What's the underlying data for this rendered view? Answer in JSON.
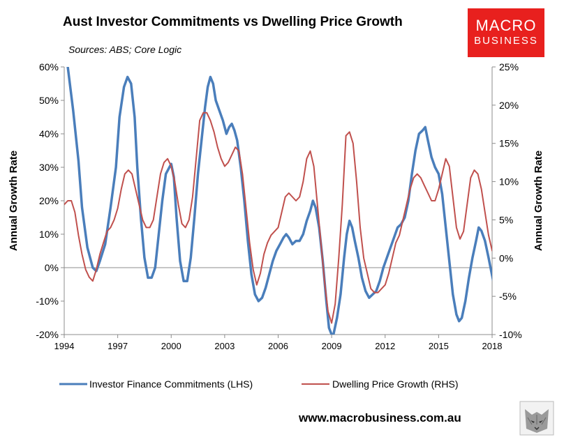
{
  "colors": {
    "investor": "#4a7ebb",
    "dwelling": "#c0504d",
    "logo_bg": "#e8201e",
    "axis": "#8c8c8c",
    "text": "#000000"
  },
  "logo": {
    "line1": "MACRO",
    "line2": "BUSINESS"
  },
  "footer": {
    "url": "www.macrobusiness.com.au"
  },
  "chart_data": {
    "type": "line",
    "title": "Aust Investor Commitments vs Dwelling Price Growth",
    "subtitle": "Sources: ABS; Core Logic",
    "ylabel_left": "Annual Growth Rate",
    "ylabel_right": "Annual Growth Rate",
    "x_range": [
      1994,
      2018
    ],
    "x_ticks": [
      1994,
      1997,
      2000,
      2003,
      2006,
      2009,
      2012,
      2015,
      2018
    ],
    "x_tick_labels": [
      "1994",
      "1997",
      "2000",
      "2003",
      "2006",
      "2009",
      "2012",
      "2015",
      "2018"
    ],
    "y_left_range": [
      -20,
      60
    ],
    "y_left_ticks": [
      -20,
      -10,
      0,
      10,
      20,
      30,
      40,
      50,
      60
    ],
    "y_left_tick_labels": [
      "-20%",
      "-10%",
      "0%",
      "10%",
      "20%",
      "30%",
      "40%",
      "50%",
      "60%"
    ],
    "y_right_range": [
      -10,
      25
    ],
    "y_right_ticks": [
      -10,
      -5,
      0,
      5,
      10,
      15,
      20,
      25
    ],
    "y_right_tick_labels": [
      "-10%",
      "-5%",
      "0%",
      "5%",
      "10%",
      "15%",
      "20%",
      "25%"
    ],
    "series": [
      {
        "name": "Investor Finance Commitments (LHS)",
        "axis": "left",
        "color": "#4a7ebb",
        "points": [
          [
            1994.2,
            60
          ],
          [
            1994.5,
            47
          ],
          [
            1994.8,
            32
          ],
          [
            1995.0,
            18
          ],
          [
            1995.3,
            6
          ],
          [
            1995.6,
            0
          ],
          [
            1995.8,
            -1
          ],
          [
            1996.0,
            2
          ],
          [
            1996.3,
            7
          ],
          [
            1996.6,
            18
          ],
          [
            1996.9,
            30
          ],
          [
            1997.1,
            45
          ],
          [
            1997.35,
            54
          ],
          [
            1997.55,
            57
          ],
          [
            1997.75,
            55
          ],
          [
            1997.95,
            45
          ],
          [
            1998.1,
            30
          ],
          [
            1998.3,
            15
          ],
          [
            1998.5,
            3
          ],
          [
            1998.7,
            -3
          ],
          [
            1998.9,
            -3
          ],
          [
            1999.1,
            0
          ],
          [
            1999.3,
            10
          ],
          [
            1999.5,
            20
          ],
          [
            1999.7,
            28
          ],
          [
            1999.9,
            30
          ],
          [
            2000.0,
            31
          ],
          [
            2000.15,
            27
          ],
          [
            2000.3,
            15
          ],
          [
            2000.5,
            2
          ],
          [
            2000.7,
            -4
          ],
          [
            2000.9,
            -4
          ],
          [
            2001.1,
            3
          ],
          [
            2001.3,
            15
          ],
          [
            2001.5,
            28
          ],
          [
            2001.7,
            38
          ],
          [
            2001.9,
            48
          ],
          [
            2002.05,
            54
          ],
          [
            2002.2,
            57
          ],
          [
            2002.35,
            55
          ],
          [
            2002.5,
            50
          ],
          [
            2002.7,
            47
          ],
          [
            2002.9,
            44
          ],
          [
            2003.1,
            40
          ],
          [
            2003.25,
            42
          ],
          [
            2003.4,
            43
          ],
          [
            2003.55,
            41
          ],
          [
            2003.7,
            38
          ],
          [
            2003.9,
            30
          ],
          [
            2004.1,
            20
          ],
          [
            2004.3,
            8
          ],
          [
            2004.5,
            -2
          ],
          [
            2004.7,
            -8
          ],
          [
            2004.9,
            -10
          ],
          [
            2005.1,
            -9
          ],
          [
            2005.3,
            -6
          ],
          [
            2005.5,
            -2
          ],
          [
            2005.7,
            2
          ],
          [
            2005.9,
            5
          ],
          [
            2006.1,
            7
          ],
          [
            2006.3,
            9
          ],
          [
            2006.45,
            10
          ],
          [
            2006.6,
            9
          ],
          [
            2006.8,
            7
          ],
          [
            2007.0,
            8
          ],
          [
            2007.2,
            8
          ],
          [
            2007.4,
            10
          ],
          [
            2007.6,
            14
          ],
          [
            2007.8,
            17
          ],
          [
            2007.95,
            20
          ],
          [
            2008.1,
            18
          ],
          [
            2008.3,
            12
          ],
          [
            2008.5,
            2
          ],
          [
            2008.7,
            -10
          ],
          [
            2008.85,
            -18
          ],
          [
            2009.0,
            -20
          ],
          [
            2009.1,
            -20
          ],
          [
            2009.3,
            -15
          ],
          [
            2009.5,
            -8
          ],
          [
            2009.7,
            3
          ],
          [
            2009.85,
            10
          ],
          [
            2010.0,
            14
          ],
          [
            2010.15,
            12
          ],
          [
            2010.3,
            8
          ],
          [
            2010.5,
            3
          ],
          [
            2010.7,
            -3
          ],
          [
            2010.9,
            -7
          ],
          [
            2011.1,
            -9
          ],
          [
            2011.3,
            -8
          ],
          [
            2011.5,
            -7
          ],
          [
            2011.7,
            -4
          ],
          [
            2011.9,
            0
          ],
          [
            2012.1,
            3
          ],
          [
            2012.3,
            6
          ],
          [
            2012.5,
            9
          ],
          [
            2012.7,
            12
          ],
          [
            2012.9,
            13
          ],
          [
            2013.1,
            15
          ],
          [
            2013.3,
            20
          ],
          [
            2013.5,
            28
          ],
          [
            2013.7,
            35
          ],
          [
            2013.9,
            40
          ],
          [
            2014.1,
            41
          ],
          [
            2014.25,
            42
          ],
          [
            2014.4,
            38
          ],
          [
            2014.6,
            33
          ],
          [
            2014.8,
            30
          ],
          [
            2015.0,
            28
          ],
          [
            2015.2,
            22
          ],
          [
            2015.4,
            12
          ],
          [
            2015.6,
            2
          ],
          [
            2015.8,
            -8
          ],
          [
            2016.0,
            -14
          ],
          [
            2016.15,
            -16
          ],
          [
            2016.3,
            -15
          ],
          [
            2016.5,
            -10
          ],
          [
            2016.7,
            -3
          ],
          [
            2016.9,
            3
          ],
          [
            2017.1,
            8
          ],
          [
            2017.25,
            12
          ],
          [
            2017.4,
            11
          ],
          [
            2017.6,
            8
          ],
          [
            2017.8,
            3
          ],
          [
            2017.95,
            -1
          ],
          [
            2018.1,
            -5
          ]
        ]
      },
      {
        "name": "Dwelling Price Growth (RHS)",
        "axis": "right",
        "color": "#c0504d",
        "points": [
          [
            1994.0,
            7
          ],
          [
            1994.2,
            7.5
          ],
          [
            1994.4,
            7.5
          ],
          [
            1994.6,
            6
          ],
          [
            1994.8,
            3
          ],
          [
            1995.0,
            0.5
          ],
          [
            1995.2,
            -1.5
          ],
          [
            1995.4,
            -2.5
          ],
          [
            1995.6,
            -3
          ],
          [
            1995.8,
            -1.5
          ],
          [
            1996.0,
            0.5
          ],
          [
            1996.2,
            2
          ],
          [
            1996.4,
            3.5
          ],
          [
            1996.6,
            4
          ],
          [
            1996.8,
            5
          ],
          [
            1997.0,
            6.5
          ],
          [
            1997.2,
            9
          ],
          [
            1997.4,
            11
          ],
          [
            1997.6,
            11.5
          ],
          [
            1997.8,
            11
          ],
          [
            1998.0,
            9
          ],
          [
            1998.2,
            7
          ],
          [
            1998.4,
            5
          ],
          [
            1998.6,
            4
          ],
          [
            1998.8,
            4
          ],
          [
            1999.0,
            5
          ],
          [
            1999.2,
            8
          ],
          [
            1999.4,
            11
          ],
          [
            1999.6,
            12.5
          ],
          [
            1999.8,
            13
          ],
          [
            2000.0,
            12
          ],
          [
            2000.2,
            10
          ],
          [
            2000.4,
            7
          ],
          [
            2000.6,
            4.5
          ],
          [
            2000.8,
            4
          ],
          [
            2001.0,
            5
          ],
          [
            2001.2,
            8
          ],
          [
            2001.4,
            13
          ],
          [
            2001.6,
            18
          ],
          [
            2001.8,
            19
          ],
          [
            2002.0,
            19
          ],
          [
            2002.2,
            18
          ],
          [
            2002.4,
            16.5
          ],
          [
            2002.6,
            14.5
          ],
          [
            2002.8,
            13
          ],
          [
            2003.0,
            12
          ],
          [
            2003.2,
            12.5
          ],
          [
            2003.4,
            13.5
          ],
          [
            2003.6,
            14.5
          ],
          [
            2003.8,
            14
          ],
          [
            2004.0,
            11
          ],
          [
            2004.2,
            6.5
          ],
          [
            2004.4,
            2
          ],
          [
            2004.6,
            -1.5
          ],
          [
            2004.8,
            -3.5
          ],
          [
            2005.0,
            -2
          ],
          [
            2005.2,
            0.5
          ],
          [
            2005.4,
            2
          ],
          [
            2005.6,
            3
          ],
          [
            2005.8,
            3.5
          ],
          [
            2006.0,
            4
          ],
          [
            2006.2,
            6
          ],
          [
            2006.4,
            8
          ],
          [
            2006.6,
            8.5
          ],
          [
            2006.8,
            8
          ],
          [
            2007.0,
            7.5
          ],
          [
            2007.2,
            8
          ],
          [
            2007.4,
            10
          ],
          [
            2007.6,
            13
          ],
          [
            2007.8,
            14
          ],
          [
            2008.0,
            12
          ],
          [
            2008.2,
            7
          ],
          [
            2008.4,
            2
          ],
          [
            2008.6,
            -3
          ],
          [
            2008.8,
            -7
          ],
          [
            2009.0,
            -8.5
          ],
          [
            2009.2,
            -6
          ],
          [
            2009.4,
            0
          ],
          [
            2009.6,
            7
          ],
          [
            2009.8,
            16
          ],
          [
            2010.0,
            16.5
          ],
          [
            2010.2,
            15
          ],
          [
            2010.4,
            10
          ],
          [
            2010.6,
            4
          ],
          [
            2010.8,
            0
          ],
          [
            2011.0,
            -2
          ],
          [
            2011.2,
            -4
          ],
          [
            2011.4,
            -4.5
          ],
          [
            2011.6,
            -4.5
          ],
          [
            2011.8,
            -4
          ],
          [
            2012.0,
            -3.5
          ],
          [
            2012.2,
            -2
          ],
          [
            2012.4,
            0
          ],
          [
            2012.6,
            2
          ],
          [
            2012.8,
            3
          ],
          [
            2013.0,
            5
          ],
          [
            2013.2,
            7
          ],
          [
            2013.4,
            9
          ],
          [
            2013.6,
            10.5
          ],
          [
            2013.8,
            11
          ],
          [
            2014.0,
            10.5
          ],
          [
            2014.2,
            9.5
          ],
          [
            2014.4,
            8.5
          ],
          [
            2014.6,
            7.5
          ],
          [
            2014.8,
            7.5
          ],
          [
            2015.0,
            9
          ],
          [
            2015.2,
            11
          ],
          [
            2015.4,
            13
          ],
          [
            2015.6,
            12
          ],
          [
            2015.8,
            8
          ],
          [
            2016.0,
            4
          ],
          [
            2016.2,
            2.5
          ],
          [
            2016.4,
            3.5
          ],
          [
            2016.6,
            7
          ],
          [
            2016.8,
            10.5
          ],
          [
            2017.0,
            11.5
          ],
          [
            2017.2,
            11
          ],
          [
            2017.4,
            9
          ],
          [
            2017.6,
            6
          ],
          [
            2017.8,
            3
          ],
          [
            2018.0,
            1
          ],
          [
            2018.1,
            0.5
          ]
        ]
      }
    ],
    "legend": [
      "Investor Finance Commitments (LHS)",
      "Dwelling Price Growth (RHS)"
    ],
    "legend_position": "bottom"
  }
}
